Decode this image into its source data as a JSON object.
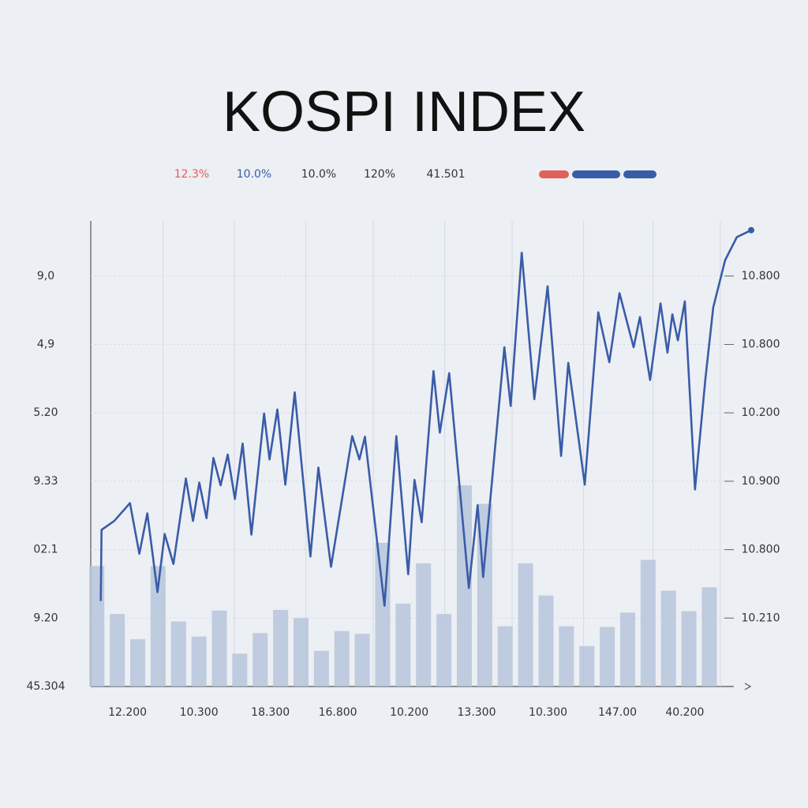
{
  "chart_data": {
    "type": "line",
    "title": "KOSPI INDEX",
    "annotations": [
      {
        "text": "12.3%",
        "color": "#e0605a"
      },
      {
        "text": "10.0%",
        "color": "#3a5ca8"
      },
      {
        "text": "10.0%",
        "color": "#333333"
      },
      {
        "text": "120%",
        "color": "#333333"
      },
      {
        "text": "41.501",
        "color": "#333333"
      }
    ],
    "xlim": [
      -0.3,
      31.2
    ],
    "xticks": [
      {
        "value": 1.5,
        "label": "12.200"
      },
      {
        "value": 5,
        "label": "10.300"
      },
      {
        "value": 8.5,
        "label": "18.300"
      },
      {
        "value": 11.8,
        "label": "16.800"
      },
      {
        "value": 15.3,
        "label": "10.200"
      },
      {
        "value": 18.6,
        "label": "13.300"
      },
      {
        "value": 22.1,
        "label": "10.300"
      },
      {
        "value": 25.5,
        "label": "147.00"
      },
      {
        "value": 28.8,
        "label": "40.200"
      }
    ],
    "ylim": [
      0,
      6.8
    ],
    "yticks": [
      {
        "value": 0,
        "label": "45.304"
      },
      {
        "value": 1,
        "label": "9.20"
      },
      {
        "value": 2,
        "label": "02.1"
      },
      {
        "value": 3,
        "label": "9.33"
      },
      {
        "value": 4,
        "label": "5.20"
      },
      {
        "value": 5,
        "label": "4,9"
      },
      {
        "value": 6,
        "label": "9,0"
      }
    ],
    "y2lim": [
      0,
      6.8
    ],
    "y2ticks": [
      {
        "value": 1,
        "label": "10.210"
      },
      {
        "value": 2,
        "label": "10.800"
      },
      {
        "value": 3,
        "label": "10.900"
      },
      {
        "value": 4,
        "label": "10.200"
      },
      {
        "value": 5,
        "label": "10.800"
      },
      {
        "value": 6,
        "label": "10.800"
      }
    ],
    "grid": true,
    "bars": {
      "color": "#b7c4da",
      "x": [
        0,
        1,
        2,
        3,
        4,
        5,
        6,
        7,
        8,
        9,
        10,
        11,
        12,
        13,
        14,
        15,
        16,
        17,
        18,
        19,
        20,
        21,
        22,
        23,
        24,
        25,
        26,
        27,
        28,
        29,
        30
      ],
      "values": [
        1.76,
        1.06,
        0.69,
        1.76,
        0.95,
        0.73,
        1.11,
        0.48,
        0.78,
        1.12,
        1.0,
        0.52,
        0.81,
        0.77,
        2.1,
        1.21,
        1.8,
        1.06,
        2.94,
        2.67,
        0.88,
        1.8,
        1.33,
        0.88,
        0.59,
        0.87,
        1.08,
        1.85,
        1.4,
        1.1,
        1.45
      ]
    },
    "line": {
      "color": "#3a5ca8",
      "x": [
        0.19,
        0.23,
        0.85,
        1.62,
        2.08,
        2.47,
        2.97,
        3.32,
        3.75,
        4.36,
        4.71,
        5.02,
        5.37,
        5.71,
        6.06,
        6.41,
        6.76,
        7.14,
        7.57,
        8.19,
        8.46,
        8.84,
        9.23,
        9.69,
        10.46,
        10.85,
        11.47,
        12.51,
        12.86,
        13.13,
        14.09,
        14.67,
        15.25,
        15.56,
        15.91,
        16.49,
        16.8,
        17.26,
        18.22,
        18.65,
        18.92,
        19.96,
        20.27,
        20.81,
        21.43,
        22.08,
        22.74,
        23.09,
        23.9,
        24.56,
        25.1,
        25.6,
        26.29,
        26.6,
        27.1,
        27.61,
        27.95,
        28.19,
        28.46,
        28.8,
        29.3,
        29.81,
        30.19,
        30.77,
        31.35,
        32.05
      ],
      "values": [
        1.25,
        2.29,
        2.42,
        2.68,
        1.94,
        2.53,
        1.38,
        2.23,
        1.79,
        3.04,
        2.42,
        2.98,
        2.46,
        3.34,
        2.94,
        3.39,
        2.74,
        3.55,
        2.22,
        3.99,
        3.32,
        4.05,
        2.95,
        4.3,
        1.9,
        3.2,
        1.75,
        3.66,
        3.32,
        3.65,
        1.18,
        3.66,
        1.64,
        3.02,
        2.4,
        4.61,
        3.71,
        4.58,
        1.44,
        2.65,
        1.6,
        4.96,
        4.1,
        6.34,
        4.2,
        5.85,
        3.37,
        4.73,
        2.95,
        5.47,
        4.74,
        5.75,
        4.96,
        5.4,
        4.48,
        5.6,
        4.88,
        5.44,
        5.06,
        5.63,
        2.88,
        4.5,
        5.54,
        6.23,
        6.57,
        6.67
      ]
    }
  }
}
